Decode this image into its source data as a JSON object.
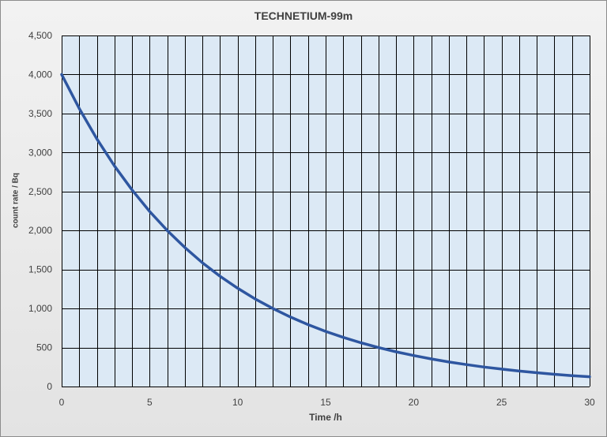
{
  "chart_data": {
    "type": "line",
    "title": "TECHNETIUM-99m",
    "xlabel": "Time /h",
    "ylabel": "count rate / Bq",
    "xlim": [
      0,
      30
    ],
    "ylim": [
      0,
      4500
    ],
    "x_ticks": [
      0,
      5,
      10,
      15,
      20,
      25,
      30
    ],
    "x_tick_labels": [
      "0",
      "5",
      "10",
      "15",
      "20",
      "25",
      "30"
    ],
    "x_gridlines": [
      0,
      1,
      2,
      3,
      4,
      5,
      6,
      7,
      8,
      9,
      10,
      11,
      12,
      13,
      14,
      15,
      16,
      17,
      18,
      19,
      20,
      21,
      22,
      23,
      24,
      25,
      26,
      27,
      28,
      29,
      30
    ],
    "y_ticks": [
      0,
      500,
      1000,
      1500,
      2000,
      2500,
      3000,
      3500,
      4000,
      4500
    ],
    "y_tick_labels": [
      "0",
      "500",
      "1,000",
      "1,500",
      "2,000",
      "2,500",
      "3,000",
      "3,500",
      "4,000",
      "4,500"
    ],
    "grid": true,
    "legend": "none",
    "colors": {
      "line": "#2e56a0",
      "plot_background": "#dce9f5",
      "grid": "#000000"
    },
    "series": [
      {
        "x": [
          0,
          1,
          2,
          3,
          4,
          5,
          6,
          7,
          8,
          9,
          10,
          11,
          12,
          13,
          14,
          15,
          16,
          17,
          18,
          19,
          20,
          21,
          22,
          23,
          24,
          25,
          26,
          27,
          28,
          29,
          30
        ],
        "y": [
          4000,
          3564,
          3175,
          2828,
          2520,
          2245,
          2000,
          1782,
          1587,
          1414,
          1260,
          1122,
          1000,
          891,
          794,
          707,
          630,
          561,
          500,
          445,
          397,
          354,
          315,
          281,
          250,
          223,
          198,
          177,
          157,
          140,
          125
        ]
      }
    ]
  }
}
